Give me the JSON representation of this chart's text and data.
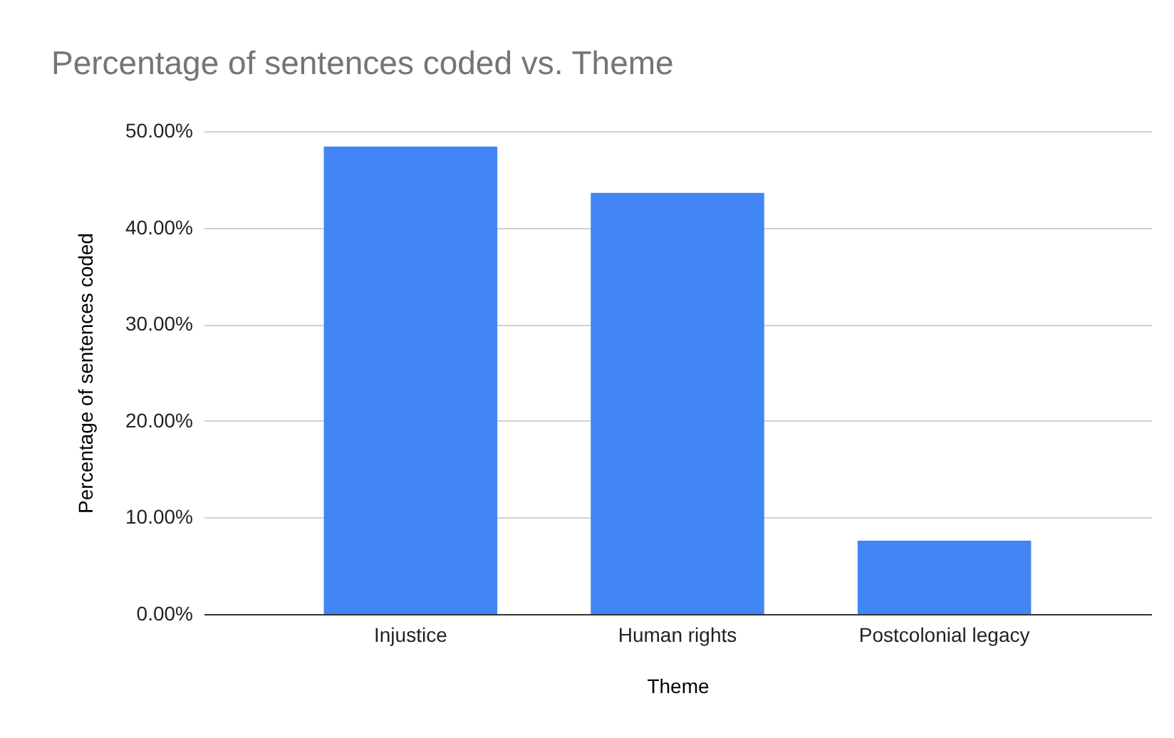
{
  "chart_data": {
    "type": "bar",
    "title": "Percentage of sentences coded vs. Theme",
    "xlabel": "Theme",
    "ylabel": "Percentage of sentences coded",
    "categories": [
      "Injustice",
      "Human rights",
      "Postcolonial legacy"
    ],
    "values": [
      48.4,
      43.6,
      7.6
    ],
    "color": "#4285f4",
    "ylim": [
      0,
      50
    ],
    "yticks": [
      {
        "value": 0,
        "label": "0.00%"
      },
      {
        "value": 10,
        "label": "10.00%"
      },
      {
        "value": 20,
        "label": "20.00%"
      },
      {
        "value": 30,
        "label": "30.00%"
      },
      {
        "value": 40,
        "label": "40.00%"
      },
      {
        "value": 50,
        "label": "50.00%"
      }
    ],
    "grid": "y"
  }
}
